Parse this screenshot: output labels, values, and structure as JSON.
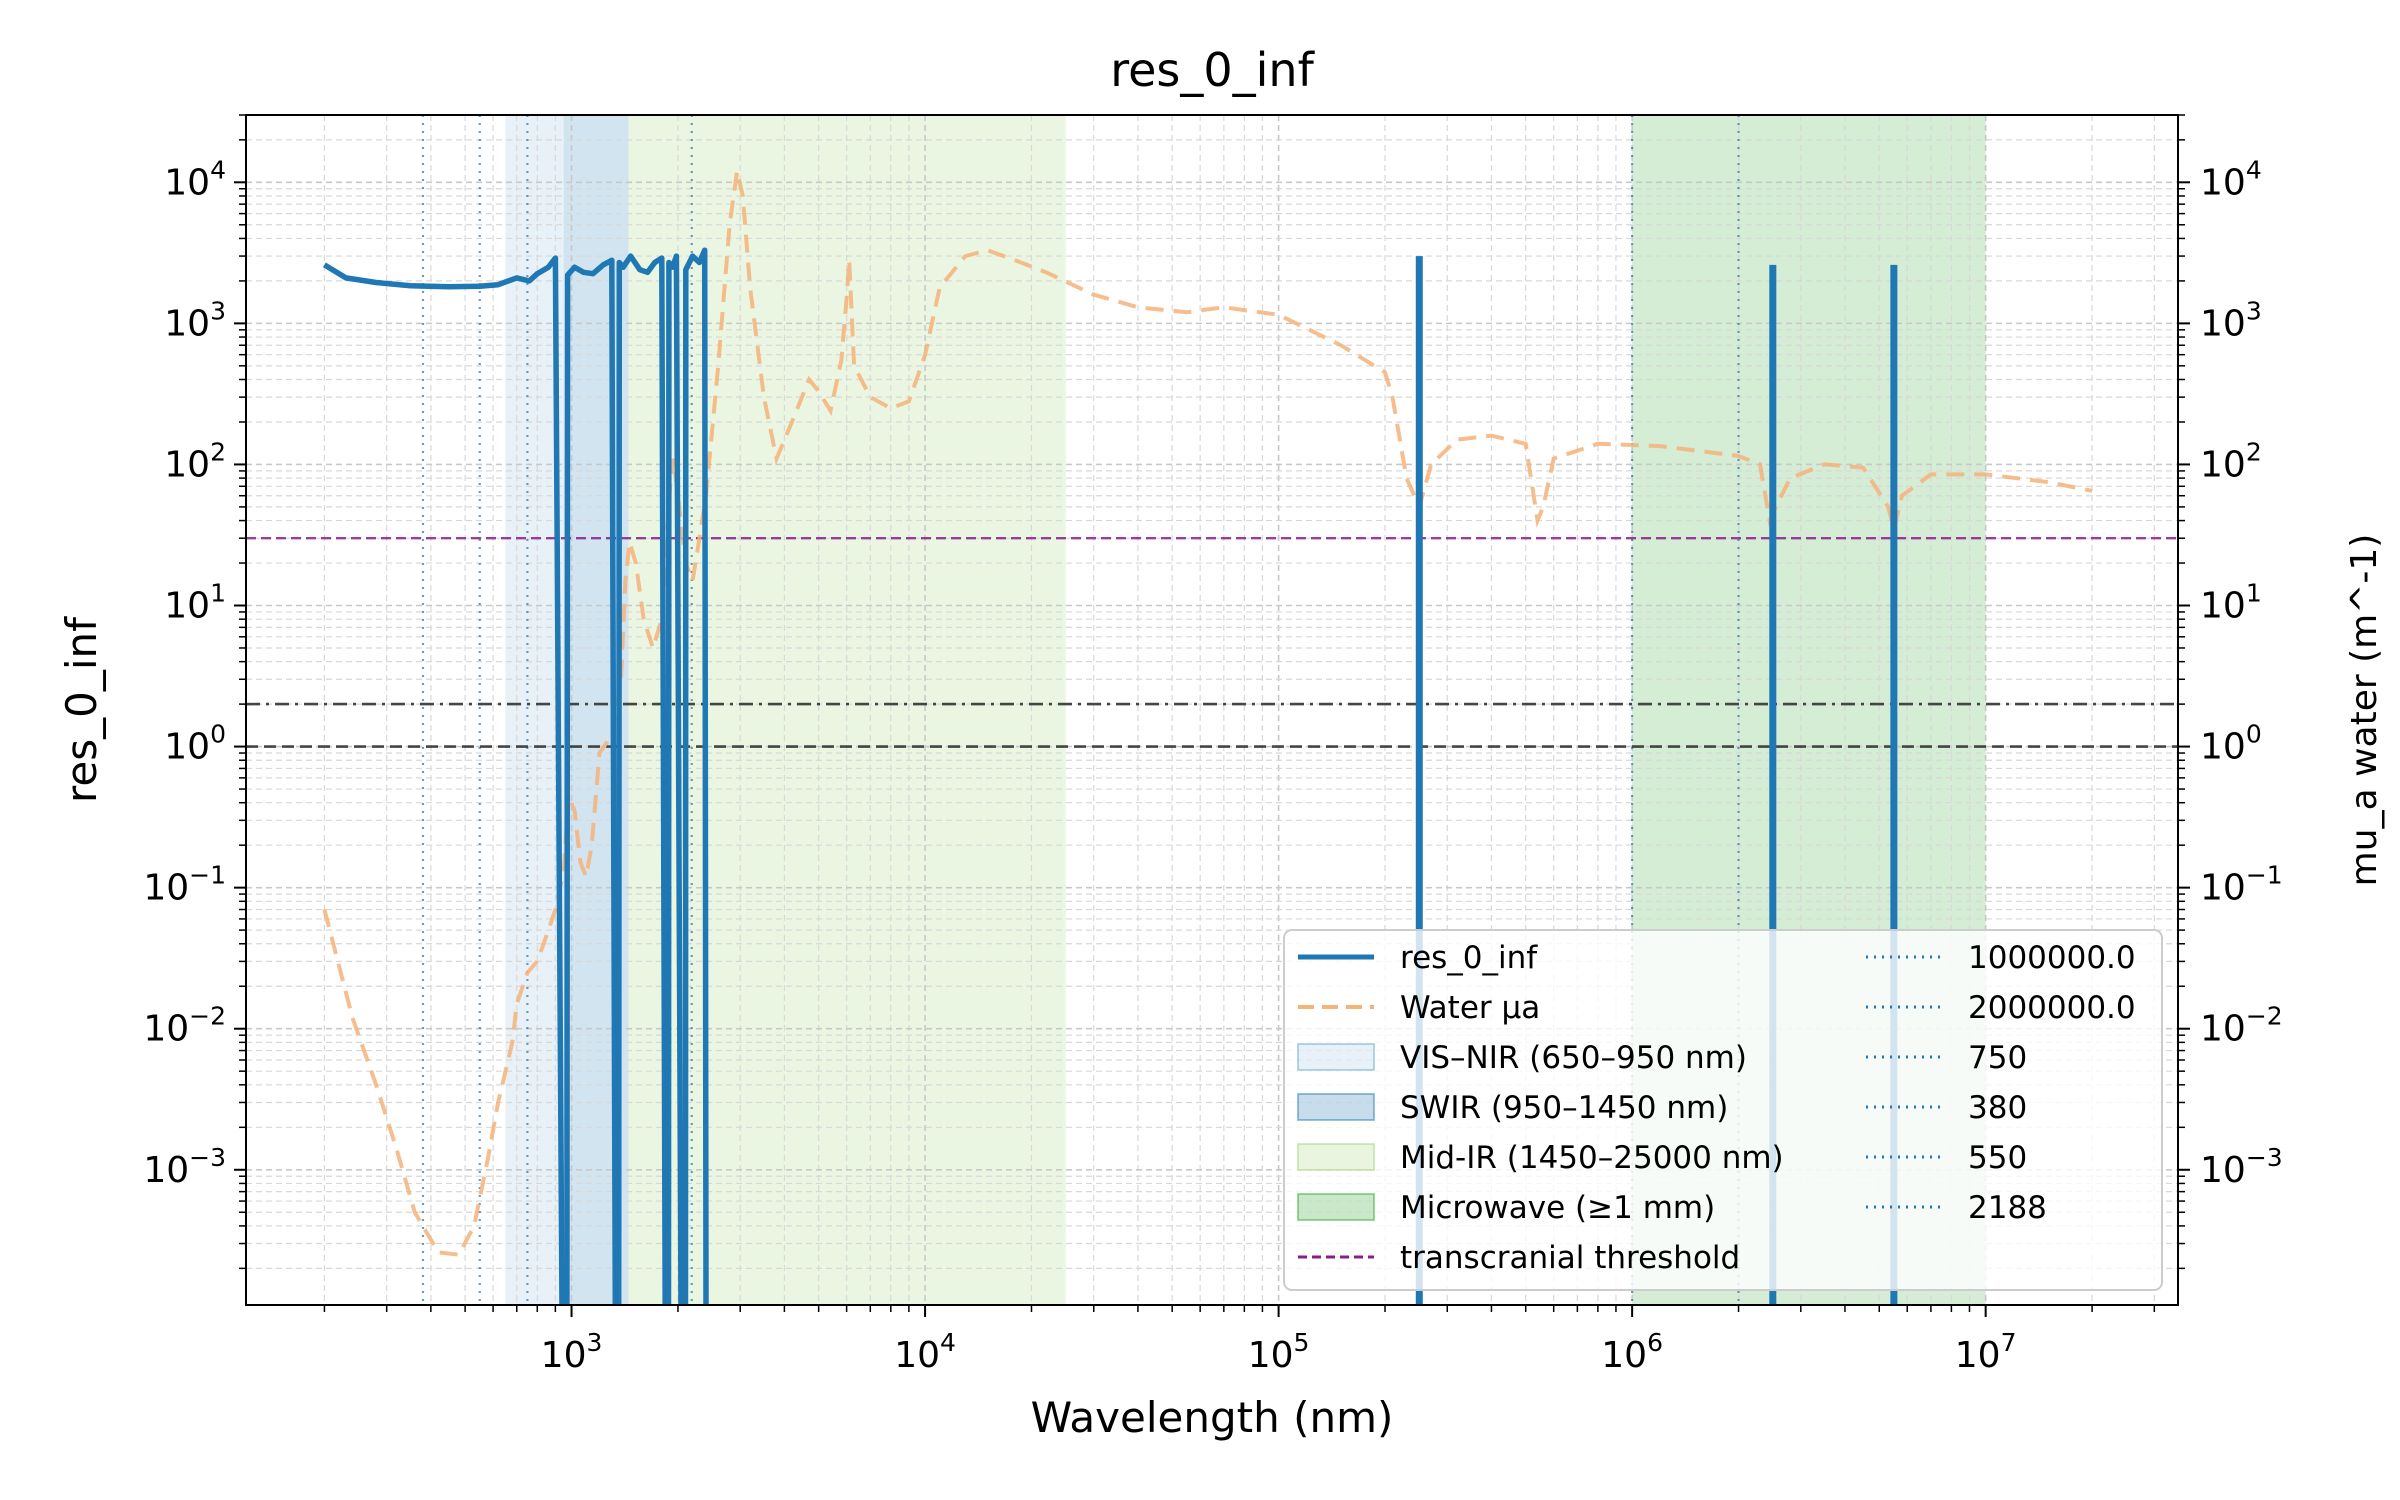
{
  "chart_data": {
    "type": "line",
    "title": "res_0_inf",
    "xlabel": "Wavelength (nm)",
    "ylabel": "res_0_inf",
    "ylabel_right": "mu_a water (m^-1)",
    "x_scale": "log",
    "y_scale": "log",
    "xlim": [
      120,
      35000000
    ],
    "ylim": [
      0.00011,
      30000
    ],
    "y2lim": [
      0.00011,
      30000
    ],
    "grid": true,
    "legend_position": "lower-right",
    "x_ticks": [
      {
        "v": 1000,
        "base": "10",
        "exp": "3"
      },
      {
        "v": 10000,
        "base": "10",
        "exp": "4"
      },
      {
        "v": 100000,
        "base": "10",
        "exp": "5"
      },
      {
        "v": 1000000,
        "base": "10",
        "exp": "6"
      },
      {
        "v": 10000000,
        "base": "10",
        "exp": "7"
      }
    ],
    "y_ticks": [
      {
        "v": 0.001,
        "base": "10",
        "exp": "−3"
      },
      {
        "v": 0.01,
        "base": "10",
        "exp": "−2"
      },
      {
        "v": 0.1,
        "base": "10",
        "exp": "−1"
      },
      {
        "v": 1,
        "base": "10",
        "exp": "0"
      },
      {
        "v": 10,
        "base": "10",
        "exp": "1"
      },
      {
        "v": 100,
        "base": "10",
        "exp": "2"
      },
      {
        "v": 1000,
        "base": "10",
        "exp": "3"
      },
      {
        "v": 10000,
        "base": "10",
        "exp": "4"
      }
    ],
    "bands": [
      {
        "name": "VIS–NIR (650–950 nm)",
        "x0": 650,
        "x1": 950,
        "color": "#1f77b4",
        "alpha": 0.1
      },
      {
        "name": "SWIR (950–1450 nm)",
        "x0": 950,
        "x1": 1450,
        "color": "#1f77b4",
        "alpha": 0.2
      },
      {
        "name": "Mid-IR (1450–25000 nm)",
        "x0": 1450,
        "x1": 25000,
        "color": "#8fcf5f",
        "alpha": 0.18
      },
      {
        "name": "Microwave (≥1 mm)",
        "x0": 1000000,
        "x1": 10000000,
        "color": "#2ca02c",
        "alpha": 0.2
      }
    ],
    "series": [
      {
        "name": "res_0_inf",
        "axis": "left",
        "color": "#1f77b4",
        "style": "solid",
        "points": [
          [
            200,
            2600
          ],
          [
            230,
            2100
          ],
          [
            280,
            1950
          ],
          [
            350,
            1850
          ],
          [
            450,
            1820
          ],
          [
            550,
            1830
          ],
          [
            620,
            1880
          ],
          [
            700,
            2100
          ],
          [
            760,
            2000
          ],
          [
            800,
            2250
          ],
          [
            860,
            2500
          ],
          [
            900,
            2900
          ],
          [
            940,
            0.0001
          ]
        ],
        "segments": [
          [
            [
              970,
              0.0001
            ],
            [
              975,
              2200
            ],
            [
              1020,
              2500
            ],
            [
              1080,
              2300
            ],
            [
              1150,
              2250
            ],
            [
              1230,
              2600
            ],
            [
              1300,
              2800
            ],
            [
              1330,
              0.0001
            ]
          ],
          [
            [
              1360,
              0.0001
            ],
            [
              1365,
              2700
            ],
            [
              1400,
              2500
            ],
            [
              1470,
              3000
            ],
            [
              1560,
              2400
            ],
            [
              1640,
              2300
            ],
            [
              1720,
              2700
            ],
            [
              1800,
              2900
            ],
            [
              1840,
              0.0001
            ]
          ],
          [
            [
              1880,
              0.0001
            ],
            [
              1885,
              2700
            ],
            [
              1930,
              2500
            ],
            [
              1980,
              3000
            ],
            [
              2040,
              0.0001
            ]
          ],
          [
            [
              2100,
              0.0001
            ],
            [
              2105,
              2400
            ],
            [
              2200,
              3000
            ],
            [
              2300,
              2700
            ],
            [
              2380,
              3300
            ],
            [
              2400,
              0.0001
            ]
          ]
        ],
        "spikes": [
          {
            "x": 250000,
            "y": 3000
          },
          {
            "x": 2500000,
            "y": 2600
          },
          {
            "x": 5500000,
            "y": 2600
          }
        ]
      },
      {
        "name": "Water μa",
        "axis": "right",
        "color": "#f5b37a",
        "style": "dashed",
        "points": [
          [
            200,
            0.07
          ],
          [
            240,
            0.012
          ],
          [
            280,
            0.004
          ],
          [
            320,
            0.0014
          ],
          [
            360,
            0.0005
          ],
          [
            420,
            0.00026
          ],
          [
            480,
            0.00025
          ],
          [
            530,
            0.0004
          ],
          [
            580,
            0.0012
          ],
          [
            620,
            0.003
          ],
          [
            680,
            0.008
          ],
          [
            700,
            0.015
          ],
          [
            750,
            0.025
          ],
          [
            800,
            0.03
          ],
          [
            860,
            0.05
          ],
          [
            900,
            0.07
          ],
          [
            950,
            0.13
          ],
          [
            980,
            0.45
          ],
          [
            1020,
            0.35
          ],
          [
            1060,
            0.15
          ],
          [
            1100,
            0.12
          ],
          [
            1140,
            0.2
          ],
          [
            1200,
            0.9
          ],
          [
            1300,
            1.2
          ],
          [
            1380,
            3
          ],
          [
            1420,
            15
          ],
          [
            1460,
            28
          ],
          [
            1520,
            20
          ],
          [
            1600,
            8
          ],
          [
            1700,
            5
          ],
          [
            1800,
            8
          ],
          [
            1900,
            70
          ],
          [
            1940,
            110
          ],
          [
            2000,
            60
          ],
          [
            2100,
            20
          ],
          [
            2200,
            15
          ],
          [
            2300,
            30
          ],
          [
            2400,
            60
          ],
          [
            2600,
            500
          ],
          [
            2800,
            5000
          ],
          [
            2940,
            12000
          ],
          [
            3050,
            8000
          ],
          [
            3200,
            1800
          ],
          [
            3500,
            300
          ],
          [
            3800,
            110
          ],
          [
            4200,
            200
          ],
          [
            4700,
            400
          ],
          [
            5000,
            330
          ],
          [
            5400,
            240
          ],
          [
            5800,
            550
          ],
          [
            6000,
            1500
          ],
          [
            6100,
            2800
          ],
          [
            6300,
            500
          ],
          [
            7000,
            300
          ],
          [
            8000,
            250
          ],
          [
            9000,
            280
          ],
          [
            10000,
            600
          ],
          [
            11000,
            1800
          ],
          [
            13000,
            3000
          ],
          [
            15000,
            3300
          ],
          [
            18000,
            2800
          ],
          [
            22000,
            2300
          ],
          [
            30000,
            1600
          ],
          [
            40000,
            1300
          ],
          [
            55000,
            1200
          ],
          [
            70000,
            1300
          ],
          [
            100000,
            1150
          ],
          [
            150000,
            700
          ],
          [
            200000,
            450
          ],
          [
            210000,
            300
          ],
          [
            230000,
            80
          ],
          [
            250000,
            50
          ],
          [
            270000,
            100
          ],
          [
            320000,
            150
          ],
          [
            400000,
            160
          ],
          [
            500000,
            140
          ],
          [
            540000,
            40
          ],
          [
            560000,
            50
          ],
          [
            600000,
            110
          ],
          [
            800000,
            140
          ],
          [
            1200000,
            135
          ],
          [
            2000000,
            115
          ],
          [
            2300000,
            100
          ],
          [
            2450000,
            40
          ],
          [
            2550000,
            50
          ],
          [
            2800000,
            80
          ],
          [
            3500000,
            100
          ],
          [
            4500000,
            95
          ],
          [
            5300000,
            50
          ],
          [
            5500000,
            35
          ],
          [
            5800000,
            60
          ],
          [
            7000000,
            85
          ],
          [
            10000000,
            85
          ],
          [
            15000000,
            75
          ],
          [
            20000000,
            65
          ]
        ]
      }
    ],
    "hlines": [
      {
        "name": "transcranial threshold",
        "y": 30,
        "color": "#8b1d8b",
        "style": "dashed"
      },
      {
        "y": 2,
        "color": "#333333",
        "style": "dashdot"
      },
      {
        "y": 1,
        "color": "#333333",
        "style": "dashed"
      }
    ],
    "vlines": [
      {
        "name": "1000000.0",
        "x": 1000000
      },
      {
        "name": "2000000.0",
        "x": 2000000
      },
      {
        "name": "750",
        "x": 750
      },
      {
        "name": "380",
        "x": 380
      },
      {
        "name": "550",
        "x": 550
      },
      {
        "name": "2188",
        "x": 2188
      }
    ],
    "legend": [
      {
        "label": "res_0_inf",
        "kind": "line",
        "color": "#1f77b4"
      },
      {
        "label": "Water μa",
        "kind": "dash",
        "color": "#f5b37a"
      },
      {
        "label": "VIS–NIR (650–950 nm)",
        "kind": "patch",
        "color": "#1f77b4",
        "alpha": 0.1
      },
      {
        "label": "SWIR (950–1450 nm)",
        "kind": "patch",
        "color": "#1f77b4",
        "alpha": 0.25
      },
      {
        "label": "Mid-IR (1450–25000 nm)",
        "kind": "patch",
        "color": "#8fcf5f",
        "alpha": 0.2
      },
      {
        "label": "Microwave (≥1 mm)",
        "kind": "patch",
        "color": "#2ca02c",
        "alpha": 0.25
      },
      {
        "label": "transcranial threshold",
        "kind": "purple-dash",
        "color": "#8b1d8b"
      },
      {
        "label": "1000000.0",
        "kind": "dot",
        "color": "#1f77b4"
      },
      {
        "label": "2000000.0",
        "kind": "dot",
        "color": "#1f77b4"
      },
      {
        "label": "750",
        "kind": "dot",
        "color": "#1f77b4"
      },
      {
        "label": "380",
        "kind": "dot",
        "color": "#1f77b4"
      },
      {
        "label": "550",
        "kind": "dot",
        "color": "#1f77b4"
      },
      {
        "label": "2188",
        "kind": "dot",
        "color": "#1f77b4"
      }
    ]
  }
}
